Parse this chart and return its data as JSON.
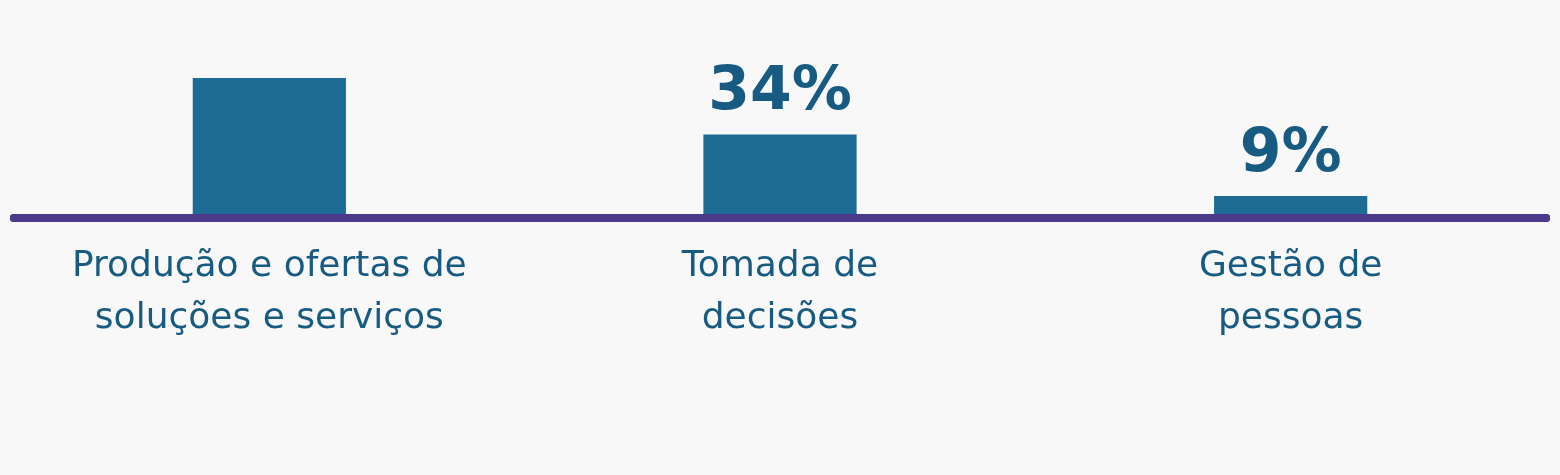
{
  "chart_data": {
    "type": "bar",
    "categories": [
      "Produção e ofertas de soluções e serviços",
      "Tomada de decisões",
      "Gestão de pessoas"
    ],
    "values": [
      57,
      34,
      9
    ],
    "value_labels": [
      null,
      "34%",
      "9%"
    ],
    "color": "#1e6b96"
  }
}
